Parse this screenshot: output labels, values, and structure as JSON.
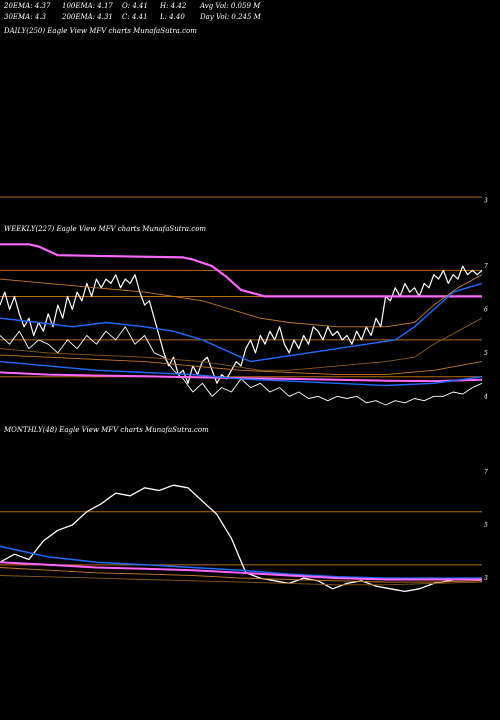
{
  "header": {
    "row1": [
      {
        "key": "ema20",
        "text": "20EMA: 4.37"
      },
      {
        "key": "ema100",
        "text": "100EMA: 4.17"
      },
      {
        "key": "open",
        "text": "O: 4.41"
      },
      {
        "key": "high",
        "text": "H: 4.42"
      },
      {
        "key": "avgvol",
        "text": "Avg Vol: 0.059 M"
      }
    ],
    "row2": [
      {
        "key": "ema30",
        "text": "30EMA: 4.3"
      },
      {
        "key": "ema200",
        "text": "200EMA: 4.31"
      },
      {
        "key": "close",
        "text": "C: 4.41"
      },
      {
        "key": "low",
        "text": "L: 4.40"
      },
      {
        "key": "dayvol",
        "text": "Day Vol: 0.245 M"
      }
    ]
  },
  "colors": {
    "background": "#000000",
    "price": "#ffffff",
    "ema_fast": "#1e6bff",
    "ema_slow": "#ff66ff",
    "band_outer": "#c77a2a",
    "band_inner": "#8b5a1a",
    "support_line": "#b86a14",
    "text": "#ffffff"
  },
  "chart_data": [
    {
      "id": "daily",
      "type": "line",
      "title": "DAILY(250) Eagle  View  MFV charts MunafaSutra.com",
      "ylim": [
        2.6,
        7.5
      ],
      "tick_labels": [
        {
          "value": 3,
          "label": "3"
        }
      ],
      "h_levels": [
        3.1
      ],
      "series": []
    },
    {
      "id": "weekly",
      "type": "line",
      "title": "WEEKLY(227) Eagle  View  MFV charts MunafaSutra.com",
      "ylim": [
        3.8,
        7.6
      ],
      "tick_labels": [
        {
          "value": 7,
          "label": "7"
        },
        {
          "value": 6,
          "label": "6"
        },
        {
          "value": 5,
          "label": "5"
        },
        {
          "value": 4,
          "label": "4"
        }
      ],
      "h_levels": [
        6.9,
        6.3,
        5.3,
        4.45
      ],
      "series": [
        {
          "key": "price",
          "color": "price",
          "width": 1.2,
          "x": [
            0,
            0.01,
            0.02,
            0.03,
            0.04,
            0.05,
            0.06,
            0.07,
            0.08,
            0.09,
            0.1,
            0.11,
            0.12,
            0.13,
            0.14,
            0.15,
            0.16,
            0.17,
            0.18,
            0.19,
            0.2,
            0.21,
            0.22,
            0.23,
            0.24,
            0.25,
            0.26,
            0.27,
            0.28,
            0.29,
            0.3,
            0.31,
            0.32,
            0.33,
            0.34,
            0.35,
            0.36,
            0.37,
            0.38,
            0.39,
            0.4,
            0.41,
            0.42,
            0.43,
            0.44,
            0.45,
            0.46,
            0.47,
            0.48,
            0.49,
            0.5,
            0.51,
            0.52,
            0.53,
            0.54,
            0.55,
            0.56,
            0.57,
            0.58,
            0.59,
            0.6,
            0.61,
            0.62,
            0.63,
            0.64,
            0.65,
            0.66,
            0.67,
            0.68,
            0.69,
            0.7,
            0.71,
            0.72,
            0.73,
            0.74,
            0.75,
            0.76,
            0.77,
            0.78,
            0.79,
            0.8,
            0.81,
            0.82,
            0.83,
            0.84,
            0.85,
            0.86,
            0.87,
            0.88,
            0.89,
            0.9,
            0.91,
            0.92,
            0.93,
            0.94,
            0.95,
            0.96,
            0.97,
            0.98,
            0.99,
            1.0
          ],
          "y": [
            6.1,
            6.4,
            6.0,
            6.3,
            5.9,
            5.6,
            5.8,
            5.4,
            5.7,
            5.5,
            5.9,
            5.6,
            6.1,
            5.8,
            6.3,
            6.0,
            6.4,
            6.2,
            6.6,
            6.3,
            6.7,
            6.5,
            6.7,
            6.6,
            6.8,
            6.5,
            6.7,
            6.6,
            6.8,
            6.4,
            6.1,
            6.2,
            5.8,
            5.4,
            5.0,
            4.7,
            4.9,
            4.5,
            4.6,
            4.3,
            4.7,
            4.5,
            4.8,
            4.9,
            4.6,
            4.3,
            4.5,
            4.4,
            4.6,
            4.8,
            4.7,
            5.1,
            5.3,
            5.0,
            5.4,
            5.2,
            5.5,
            5.3,
            5.6,
            5.2,
            5.0,
            5.3,
            5.1,
            5.4,
            5.2,
            5.6,
            5.5,
            5.3,
            5.6,
            5.4,
            5.5,
            5.3,
            5.4,
            5.2,
            5.5,
            5.3,
            5.6,
            5.4,
            5.8,
            5.6,
            6.3,
            6.2,
            6.5,
            6.3,
            6.6,
            6.4,
            6.5,
            6.3,
            6.6,
            6.5,
            6.8,
            6.7,
            6.9,
            6.6,
            6.8,
            6.7,
            7.0,
            6.8,
            6.9,
            6.8,
            6.9
          ]
        },
        {
          "key": "price2",
          "color": "price",
          "width": 0.9,
          "x": [
            0,
            0.02,
            0.04,
            0.06,
            0.08,
            0.1,
            0.12,
            0.14,
            0.16,
            0.18,
            0.2,
            0.22,
            0.24,
            0.26,
            0.28,
            0.3,
            0.32,
            0.34,
            0.36,
            0.38,
            0.4,
            0.42,
            0.44,
            0.46,
            0.48,
            0.5,
            0.52,
            0.54,
            0.56,
            0.58,
            0.6,
            0.62,
            0.64,
            0.66,
            0.68,
            0.7,
            0.72,
            0.74,
            0.76,
            0.78,
            0.8,
            0.82,
            0.84,
            0.86,
            0.88,
            0.9,
            0.92,
            0.94,
            0.96,
            0.98,
            1.0
          ],
          "y": [
            5.4,
            5.2,
            5.5,
            5.1,
            5.3,
            5.2,
            5.0,
            5.3,
            5.1,
            5.4,
            5.2,
            5.5,
            5.3,
            5.6,
            5.2,
            5.4,
            5.0,
            4.9,
            4.6,
            4.4,
            4.1,
            4.3,
            4.0,
            4.2,
            4.1,
            4.4,
            4.2,
            4.3,
            4.1,
            4.2,
            4.0,
            4.1,
            3.95,
            4.0,
            3.9,
            4.0,
            3.95,
            4.0,
            3.85,
            3.9,
            3.8,
            3.9,
            3.85,
            3.95,
            3.9,
            4.0,
            4.0,
            4.1,
            4.05,
            4.2,
            4.3
          ]
        },
        {
          "key": "ema_slow_top",
          "color": "ema_slow",
          "width": 2.2,
          "x": [
            0,
            0.06,
            0.08,
            0.12,
            0.38,
            0.4,
            0.44,
            0.47,
            0.5,
            0.55,
            0.6,
            0.7,
            0.8,
            0.86,
            0.9,
            0.95,
            1.0
          ],
          "y": [
            7.5,
            7.5,
            7.45,
            7.25,
            7.2,
            7.15,
            7.0,
            6.75,
            6.45,
            6.3,
            6.3,
            6.3,
            6.3,
            6.3,
            6.3,
            6.3,
            6.3
          ]
        },
        {
          "key": "ema_slow_low",
          "color": "ema_slow",
          "width": 2.0,
          "x": [
            0,
            0.1,
            0.2,
            0.3,
            0.4,
            0.5,
            0.6,
            0.7,
            0.8,
            0.9,
            1.0
          ],
          "y": [
            4.55,
            4.5,
            4.48,
            4.46,
            4.44,
            4.42,
            4.4,
            4.38,
            4.36,
            4.35,
            4.38
          ]
        },
        {
          "key": "ema_fast1",
          "color": "ema_fast",
          "width": 1.4,
          "x": [
            0,
            0.08,
            0.15,
            0.22,
            0.3,
            0.36,
            0.42,
            0.48,
            0.52,
            0.58,
            0.64,
            0.7,
            0.76,
            0.82,
            0.86,
            0.9,
            0.94,
            1.0
          ],
          "y": [
            5.8,
            5.7,
            5.6,
            5.7,
            5.6,
            5.5,
            5.3,
            5.0,
            4.8,
            4.9,
            5.0,
            5.1,
            5.2,
            5.3,
            5.6,
            6.0,
            6.4,
            6.6
          ]
        },
        {
          "key": "ema_fast2",
          "color": "ema_fast",
          "width": 1.4,
          "x": [
            0,
            0.1,
            0.2,
            0.3,
            0.4,
            0.5,
            0.6,
            0.7,
            0.8,
            0.9,
            1.0
          ],
          "y": [
            4.8,
            4.7,
            4.6,
            4.55,
            4.5,
            4.4,
            4.35,
            4.3,
            4.25,
            4.3,
            4.45
          ]
        },
        {
          "key": "band1",
          "color": "band_outer",
          "width": 0.9,
          "x": [
            0,
            0.1,
            0.2,
            0.3,
            0.36,
            0.42,
            0.48,
            0.54,
            0.6,
            0.7,
            0.8,
            0.86,
            0.9,
            0.95,
            1.0
          ],
          "y": [
            6.7,
            6.6,
            6.5,
            6.4,
            6.3,
            6.2,
            6.0,
            5.8,
            5.7,
            5.6,
            5.6,
            5.7,
            6.1,
            6.5,
            6.8
          ]
        },
        {
          "key": "band2",
          "color": "band_inner",
          "width": 0.9,
          "x": [
            0,
            0.1,
            0.2,
            0.3,
            0.36,
            0.42,
            0.48,
            0.54,
            0.6,
            0.7,
            0.8,
            0.86,
            0.9,
            0.95,
            1.0
          ],
          "y": [
            5.1,
            5.0,
            4.95,
            4.9,
            4.85,
            4.8,
            4.7,
            4.6,
            4.6,
            4.7,
            4.8,
            4.9,
            5.2,
            5.5,
            5.8
          ]
        },
        {
          "key": "band3",
          "color": "band_outer",
          "width": 0.9,
          "x": [
            0,
            0.1,
            0.2,
            0.3,
            0.4,
            0.5,
            0.6,
            0.7,
            0.8,
            0.9,
            1.0
          ],
          "y": [
            4.95,
            4.9,
            4.85,
            4.8,
            4.7,
            4.6,
            4.55,
            4.5,
            4.5,
            4.6,
            4.8
          ]
        }
      ]
    },
    {
      "id": "monthly",
      "type": "line",
      "title": "MONTHLY(48) Eagle  View  MFV charts MunafaSutra.com",
      "ylim": [
        1.8,
        8.2
      ],
      "tick_labels": [
        {
          "value": 7,
          "label": "7"
        },
        {
          "value": 5,
          "label": "5"
        },
        {
          "value": 3,
          "label": "3"
        }
      ],
      "h_levels": [
        5.5,
        3.5
      ],
      "series": [
        {
          "key": "price",
          "color": "price",
          "width": 1.3,
          "x": [
            0,
            0.03,
            0.06,
            0.09,
            0.12,
            0.15,
            0.18,
            0.21,
            0.24,
            0.27,
            0.3,
            0.33,
            0.36,
            0.39,
            0.42,
            0.45,
            0.48,
            0.51,
            0.54,
            0.57,
            0.6,
            0.63,
            0.66,
            0.69,
            0.72,
            0.75,
            0.78,
            0.81,
            0.84,
            0.87,
            0.9,
            0.93,
            0.96,
            1.0
          ],
          "y": [
            3.6,
            3.9,
            3.7,
            4.4,
            4.8,
            5.0,
            5.5,
            5.8,
            6.2,
            6.1,
            6.4,
            6.3,
            6.5,
            6.4,
            5.9,
            5.4,
            4.5,
            3.2,
            3.0,
            2.9,
            2.8,
            3.0,
            2.9,
            2.6,
            2.8,
            2.9,
            2.7,
            2.6,
            2.5,
            2.6,
            2.8,
            2.9,
            3.0,
            2.9
          ]
        },
        {
          "key": "ema_fast",
          "color": "ema_fast",
          "width": 1.5,
          "x": [
            0,
            0.05,
            0.1,
            0.15,
            0.2,
            0.3,
            0.4,
            0.5,
            0.6,
            0.7,
            0.8,
            0.9,
            1.0
          ],
          "y": [
            4.2,
            4.0,
            3.8,
            3.7,
            3.6,
            3.5,
            3.4,
            3.3,
            3.15,
            3.05,
            3.0,
            3.0,
            3.0
          ]
        },
        {
          "key": "ema_slow",
          "color": "ema_slow",
          "width": 2.0,
          "x": [
            0,
            0.1,
            0.2,
            0.3,
            0.4,
            0.5,
            0.6,
            0.7,
            0.8,
            0.9,
            1.0
          ],
          "y": [
            3.6,
            3.5,
            3.4,
            3.35,
            3.3,
            3.2,
            3.1,
            3.0,
            2.95,
            2.95,
            2.95
          ]
        },
        {
          "key": "band1",
          "color": "band_outer",
          "width": 0.9,
          "x": [
            0,
            0.1,
            0.2,
            0.3,
            0.4,
            0.5,
            0.6,
            0.7,
            0.8,
            0.9,
            1.0
          ],
          "y": [
            3.4,
            3.3,
            3.2,
            3.15,
            3.1,
            3.0,
            2.95,
            2.9,
            2.85,
            2.85,
            2.9
          ]
        },
        {
          "key": "band2",
          "color": "band_inner",
          "width": 0.9,
          "x": [
            0,
            0.1,
            0.2,
            0.3,
            0.4,
            0.5,
            0.6,
            0.7,
            0.8,
            0.9,
            1.0
          ],
          "y": [
            3.1,
            3.05,
            3.0,
            2.95,
            2.9,
            2.85,
            2.8,
            2.75,
            2.75,
            2.8,
            2.85
          ]
        }
      ]
    }
  ]
}
